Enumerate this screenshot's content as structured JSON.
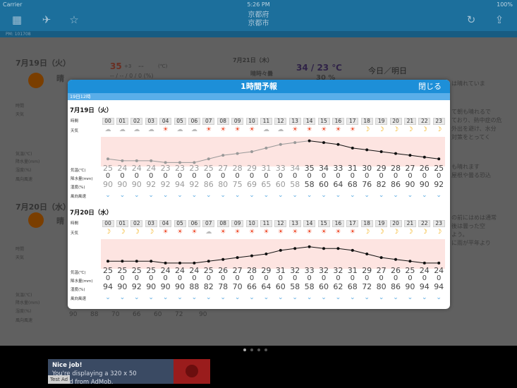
{
  "status_bar": {
    "carrier": "Carrier",
    "time": "5:26 PM",
    "battery": "100%"
  },
  "nav": {
    "prefecture": "京都府",
    "city": "京都市"
  },
  "breadcrumb": "PM: 101708",
  "background": {
    "day1_date": "7月19日（火）",
    "day1_weather": "晴",
    "day1_temp_high": "35",
    "day1_temp_high_diff": "+3",
    "day1_temp_low": "--",
    "day1_temp_unit": "(℃)",
    "day1_rain": "-- / -- / 0 / 0 (%)",
    "day2_date": "7月21日（木）",
    "day2_weather": "晴時々曇",
    "day2_temp": "34 / 23 ℃",
    "day2_rain": "30 %",
    "today_tomorrow": "今日／明日",
    "day3_date": "7月20日（水）",
    "day3_weather": "晴",
    "labels": [
      "時間",
      "天気",
      "気温(℃)",
      "降水量(mm)",
      "湿度(%)",
      "風向風速"
    ],
    "side_text": [
      "は晴れていま",
      "て朝も晴れるで",
      "ており、熱中症の危",
      "外出を避け、水分",
      "対策をとってく",
      "も晴れます",
      "屋根や曇る恐込",
      "の前にはめは通常",
      "後は曇った空",
      "よう。",
      "に雨が平年より"
    ],
    "bottom_numbers": [
      "90",
      "88",
      "70",
      "66",
      "60",
      "72",
      "90"
    ]
  },
  "ad": {
    "title": "Nice job!",
    "text": "You're displaying a 320 x 50",
    "text2": "test ad from AdMob.",
    "tag": "Test Ad"
  },
  "modal": {
    "title": "1時間予報",
    "close": "閉じる",
    "subtitle": "19日12時",
    "row_labels": {
      "hour": "時間",
      "weather": "天気",
      "temp": "気温(℃)",
      "precip": "降水量(mm)",
      "humidity": "湿度(%)",
      "wind": "風向風速"
    },
    "days": [
      {
        "date": "7月19日（火）",
        "hours": [
          "00",
          "01",
          "02",
          "03",
          "04",
          "05",
          "06",
          "07",
          "08",
          "09",
          "10",
          "11",
          "12",
          "13",
          "14",
          "15",
          "16",
          "17",
          "18",
          "19",
          "20",
          "21",
          "22",
          "23"
        ],
        "weather": [
          "cloud",
          "cloud",
          "cloud",
          "cloud",
          "sun",
          "cloud",
          "cloud",
          "sun",
          "sun",
          "sun",
          "sun",
          "cloud",
          "cloud",
          "sun",
          "sun",
          "sun",
          "sun",
          "sun",
          "moon",
          "moon",
          "moon",
          "moon",
          "moon",
          "moon"
        ],
        "temp": [
          "25",
          "24",
          "24",
          "24",
          "23",
          "23",
          "23",
          "25",
          "27",
          "28",
          "29",
          "31",
          "33",
          "34",
          "35",
          "34",
          "33",
          "31",
          "30",
          "29",
          "28",
          "27",
          "26",
          "25"
        ],
        "precip": [
          "0",
          "0",
          "0",
          "0",
          "0",
          "0",
          "0",
          "0",
          "0",
          "0",
          "0",
          "0",
          "0",
          "0",
          "0",
          "0",
          "0",
          "0",
          "0",
          "0",
          "0",
          "0",
          "0",
          "0"
        ],
        "humidity": [
          "90",
          "90",
          "90",
          "92",
          "92",
          "94",
          "92",
          "86",
          "80",
          "75",
          "69",
          "65",
          "60",
          "58",
          "58",
          "60",
          "64",
          "68",
          "76",
          "82",
          "86",
          "90",
          "90",
          "92"
        ],
        "observed_until_hour": "14"
      },
      {
        "date": "7月20日（水）",
        "hours": [
          "00",
          "01",
          "02",
          "03",
          "04",
          "05",
          "06",
          "07",
          "08",
          "09",
          "10",
          "11",
          "12",
          "13",
          "14",
          "15",
          "16",
          "17",
          "18",
          "19",
          "20",
          "21",
          "22",
          "23"
        ],
        "weather": [
          "moon",
          "moon",
          "moon",
          "moon",
          "sun",
          "sun",
          "sun",
          "cloud",
          "sun",
          "sun",
          "sun",
          "sun",
          "sun",
          "sun",
          "sun",
          "sun",
          "sun",
          "sun",
          "moon",
          "moon",
          "moon",
          "moon",
          "moon",
          "moon"
        ],
        "temp": [
          "25",
          "25",
          "25",
          "25",
          "24",
          "24",
          "24",
          "25",
          "26",
          "27",
          "28",
          "29",
          "31",
          "32",
          "33",
          "32",
          "32",
          "31",
          "29",
          "27",
          "26",
          "25",
          "24",
          "24"
        ],
        "precip": [
          "0",
          "0",
          "0",
          "0",
          "0",
          "0",
          "0",
          "0",
          "0",
          "0",
          "0",
          "0",
          "0",
          "0",
          "0",
          "0",
          "0",
          "0",
          "0",
          "0",
          "0",
          "0",
          "0",
          "0"
        ],
        "humidity": [
          "94",
          "90",
          "92",
          "90",
          "90",
          "90",
          "88",
          "82",
          "78",
          "70",
          "66",
          "64",
          "60",
          "58",
          "58",
          "60",
          "62",
          "68",
          "72",
          "80",
          "86",
          "90",
          "94",
          "94"
        ]
      }
    ]
  },
  "colors": {
    "accent": "#1d8fd8",
    "navbar": "#1c6f9c",
    "sun": "#ee4422",
    "moon": "#f2a900",
    "cloud": "#bbbbbb",
    "wind": "#52a6e0"
  },
  "icons": {
    "sun": "☀",
    "moon": "☽",
    "cloud": "☁"
  }
}
